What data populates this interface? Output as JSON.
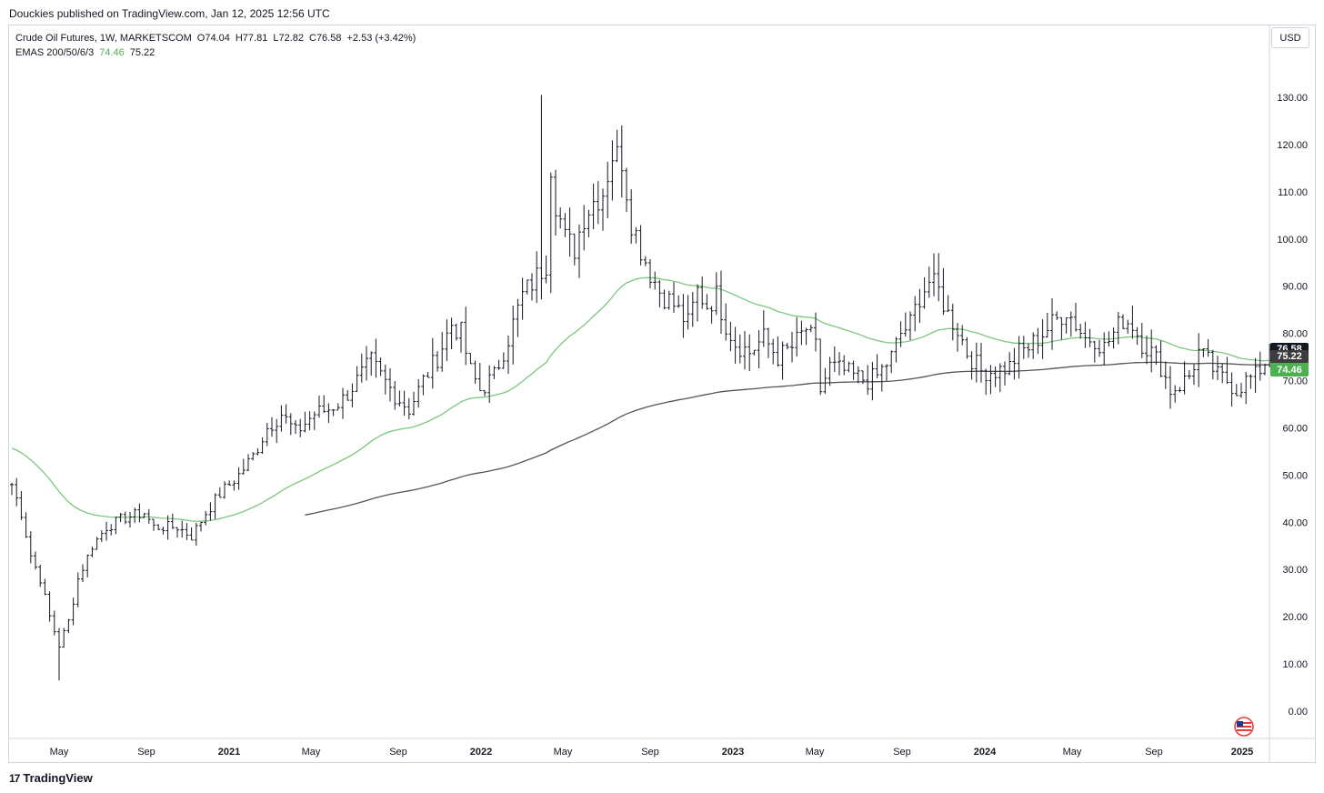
{
  "header": {
    "attribution": "Douckies published on TradingView.com, Jan 12, 2025 12:56 UTC"
  },
  "legend": {
    "symbol_line": "Crude Oil Futures, 1W, MARKETSCOM",
    "open": "O74.04",
    "high": "H77.81",
    "low": "L72.82",
    "close": "C76.58",
    "change": "+2.53 (+3.42%)",
    "ema_label": "EMAS 200/50/6/3",
    "ema_val1": "74.46",
    "ema_val2": "75.22"
  },
  "currency": "USD",
  "price_tags": {
    "last": "76.58",
    "ema200": "75.22",
    "ema50": "74.46"
  },
  "colors": {
    "last": "#131722",
    "ema200": "#3d3d3d",
    "ema50": "#4caf50",
    "ema50_line": "#7dc67f",
    "ema200_line": "#555555",
    "bars": "#131722"
  },
  "brand": {
    "name": "TradingView"
  },
  "chart_data": {
    "type": "ohlc",
    "interval": "1W",
    "yaxis": {
      "ticks": [
        "0.00",
        "10.00",
        "20.00",
        "30.00",
        "40.00",
        "50.00",
        "60.00",
        "70.00",
        "80.00",
        "90.00",
        "100.00",
        "110.00",
        "120.00",
        "130.00"
      ],
      "ylim": [
        -5,
        140
      ],
      "position": "right"
    },
    "xaxis": {
      "ticks": [
        "May",
        "Sep",
        "2021",
        "May",
        "Sep",
        "2022",
        "May",
        "Sep",
        "2023",
        "May",
        "Sep",
        "2024",
        "May",
        "Sep",
        "2025"
      ],
      "bold_ticks": [
        "2021",
        "2022",
        "2023",
        "2024",
        "2025"
      ]
    },
    "anchors": [
      {
        "w": 0,
        "p": 48
      },
      {
        "w": 2,
        "p": 42
      },
      {
        "w": 4,
        "p": 33
      },
      {
        "w": 6,
        "p": 28
      },
      {
        "w": 8,
        "p": 20
      },
      {
        "w": 10,
        "p": 14
      },
      {
        "w": 12,
        "p": 19
      },
      {
        "w": 14,
        "p": 28
      },
      {
        "w": 17,
        "p": 35
      },
      {
        "w": 20,
        "p": 39
      },
      {
        "w": 24,
        "p": 41
      },
      {
        "w": 28,
        "p": 42
      },
      {
        "w": 30,
        "p": 39
      },
      {
        "w": 35,
        "p": 39
      },
      {
        "w": 38,
        "p": 37
      },
      {
        "w": 41,
        "p": 42
      },
      {
        "w": 44,
        "p": 46
      },
      {
        "w": 48,
        "p": 50
      },
      {
        "w": 51,
        "p": 54
      },
      {
        "w": 54,
        "p": 60
      },
      {
        "w": 57,
        "p": 63
      },
      {
        "w": 60,
        "p": 59
      },
      {
        "w": 64,
        "p": 63
      },
      {
        "w": 67,
        "p": 64
      },
      {
        "w": 70,
        "p": 66
      },
      {
        "w": 73,
        "p": 70
      },
      {
        "w": 76,
        "p": 74
      },
      {
        "w": 78,
        "p": 71
      },
      {
        "w": 81,
        "p": 67
      },
      {
        "w": 84,
        "p": 64
      },
      {
        "w": 87,
        "p": 70
      },
      {
        "w": 90,
        "p": 75
      },
      {
        "w": 93,
        "p": 82
      },
      {
        "w": 95,
        "p": 80
      },
      {
        "w": 97,
        "p": 72
      },
      {
        "w": 99,
        "p": 68
      },
      {
        "w": 102,
        "p": 71
      },
      {
        "w": 105,
        "p": 79
      },
      {
        "w": 108,
        "p": 88
      },
      {
        "w": 111,
        "p": 92
      },
      {
        "w": 113,
        "p": 95
      },
      {
        "w": 114,
        "p": 116
      },
      {
        "w": 115,
        "p": 108
      },
      {
        "w": 117,
        "p": 100
      },
      {
        "w": 119,
        "p": 98
      },
      {
        "w": 121,
        "p": 105
      },
      {
        "w": 123,
        "p": 108
      },
      {
        "w": 125,
        "p": 110
      },
      {
        "w": 127,
        "p": 118
      },
      {
        "w": 129,
        "p": 117
      },
      {
        "w": 131,
        "p": 104
      },
      {
        "w": 133,
        "p": 98
      },
      {
        "w": 135,
        "p": 93
      },
      {
        "w": 137,
        "p": 89
      },
      {
        "w": 140,
        "p": 86
      },
      {
        "w": 143,
        "p": 82
      },
      {
        "w": 145,
        "p": 89
      },
      {
        "w": 147,
        "p": 86
      },
      {
        "w": 149,
        "p": 88
      },
      {
        "w": 151,
        "p": 82
      },
      {
        "w": 153,
        "p": 78
      },
      {
        "w": 156,
        "p": 76
      },
      {
        "w": 159,
        "p": 79
      },
      {
        "w": 162,
        "p": 75
      },
      {
        "w": 165,
        "p": 77
      },
      {
        "w": 168,
        "p": 81
      },
      {
        "w": 170,
        "p": 77
      },
      {
        "w": 171,
        "p": 68
      },
      {
        "w": 173,
        "p": 73
      },
      {
        "w": 176,
        "p": 72
      },
      {
        "w": 178,
        "p": 71
      },
      {
        "w": 181,
        "p": 70
      },
      {
        "w": 183,
        "p": 71
      },
      {
        "w": 186,
        "p": 75
      },
      {
        "w": 188,
        "p": 80
      },
      {
        "w": 190,
        "p": 82
      },
      {
        "w": 192,
        "p": 88
      },
      {
        "w": 194,
        "p": 91
      },
      {
        "w": 196,
        "p": 89
      },
      {
        "w": 198,
        "p": 84
      },
      {
        "w": 200,
        "p": 81
      },
      {
        "w": 202,
        "p": 76
      },
      {
        "w": 205,
        "p": 72
      },
      {
        "w": 208,
        "p": 72
      },
      {
        "w": 211,
        "p": 73
      },
      {
        "w": 213,
        "p": 76
      },
      {
        "w": 215,
        "p": 77
      },
      {
        "w": 218,
        "p": 80
      },
      {
        "w": 221,
        "p": 83
      },
      {
        "w": 223,
        "p": 85
      },
      {
        "w": 225,
        "p": 82
      },
      {
        "w": 227,
        "p": 79
      },
      {
        "w": 229,
        "p": 79
      },
      {
        "w": 231,
        "p": 77
      },
      {
        "w": 233,
        "p": 80
      },
      {
        "w": 235,
        "p": 83
      },
      {
        "w": 237,
        "p": 82
      },
      {
        "w": 239,
        "p": 78
      },
      {
        "w": 241,
        "p": 76
      },
      {
        "w": 243,
        "p": 73
      },
      {
        "w": 245,
        "p": 68
      },
      {
        "w": 247,
        "p": 69
      },
      {
        "w": 249,
        "p": 71
      },
      {
        "w": 251,
        "p": 76
      },
      {
        "w": 253,
        "p": 74
      },
      {
        "w": 255,
        "p": 71
      },
      {
        "w": 257,
        "p": 70
      },
      {
        "w": 259,
        "p": 68
      },
      {
        "w": 261,
        "p": 70
      },
      {
        "w": 263,
        "p": 71
      },
      {
        "w": 265,
        "p": 74
      },
      {
        "w": 266,
        "p": 76.58
      }
    ],
    "series": [
      {
        "name": "EMA 50",
        "color": "#7dc67f"
      },
      {
        "name": "EMA 200",
        "color": "#555555"
      }
    ]
  }
}
